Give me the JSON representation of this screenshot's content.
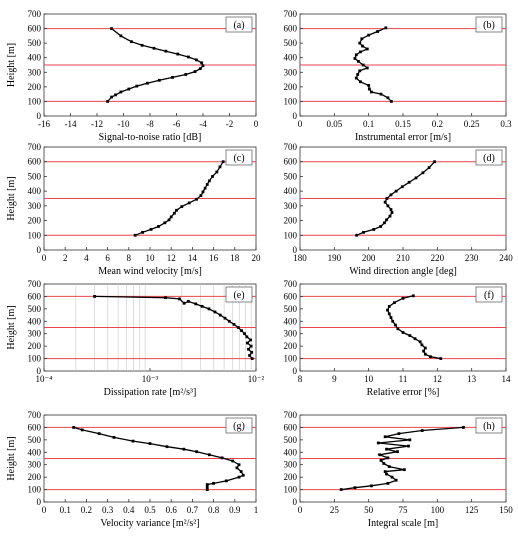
{
  "figure": {
    "colors": {
      "refline": "#e8454f",
      "grid": "#c8c8c8",
      "series": "#000000",
      "axis": "#333333"
    }
  },
  "chart_data": [
    {
      "id": "a",
      "type": "line",
      "panel_label": "(a)",
      "xlabel": "Signal-to-noise ratio [dB]",
      "ylabel": "Height [m]",
      "xlim": [
        -16,
        0
      ],
      "ylim": [
        0,
        700
      ],
      "xticks": [
        -16,
        -14,
        -12,
        -10,
        -8,
        -6,
        -4,
        -2,
        0
      ],
      "xtick_labels": [
        "-16",
        "-14",
        "-12",
        "-10",
        "-8",
        "-6",
        "-4",
        "-2",
        "0"
      ],
      "yticks": [
        0,
        100,
        200,
        300,
        400,
        500,
        600,
        700
      ],
      "ytick_labels": [
        "0",
        "100",
        "200",
        "300",
        "400",
        "500",
        "600",
        "700"
      ],
      "reference_lines_y": [
        100,
        350,
        600
      ],
      "series": [
        {
          "x": [
            -11.2,
            -10.9,
            -10.6,
            -10.2,
            -9.6,
            -9.0,
            -8.2,
            -7.3,
            -6.3,
            -5.3,
            -4.6,
            -4.2,
            -4.0,
            -4.1,
            -4.5,
            -5.1,
            -5.9,
            -6.8,
            -7.7,
            -8.6,
            -9.4,
            -10.2,
            -10.9
          ],
          "y": [
            100,
            130,
            145,
            165,
            185,
            205,
            225,
            245,
            265,
            285,
            305,
            325,
            345,
            365,
            385,
            405,
            425,
            445,
            465,
            485,
            510,
            550,
            600
          ]
        }
      ]
    },
    {
      "id": "b",
      "type": "line",
      "panel_label": "(b)",
      "xlabel": "Instrumental error [m/s]",
      "ylabel": "",
      "xlim": [
        0,
        0.3
      ],
      "ylim": [
        0,
        700
      ],
      "xticks": [
        0,
        0.05,
        0.1,
        0.15,
        0.2,
        0.25,
        0.3
      ],
      "xtick_labels": [
        "0",
        "0.05",
        "0.1",
        "0.15",
        "0.2",
        "0.25",
        "0.3"
      ],
      "yticks": [
        0,
        100,
        200,
        300,
        400,
        500,
        600,
        700
      ],
      "ytick_labels": [
        "0",
        "100",
        "200",
        "300",
        "400",
        "500",
        "600",
        "700"
      ],
      "reference_lines_y": [
        100,
        350,
        600
      ],
      "series": [
        {
          "x": [
            0.133,
            0.128,
            0.118,
            0.104,
            0.101,
            0.1,
            0.088,
            0.082,
            0.084,
            0.087,
            0.098,
            0.092,
            0.085,
            0.08,
            0.082,
            0.088,
            0.098,
            0.091,
            0.087,
            0.09,
            0.1,
            0.113,
            0.125
          ],
          "y": [
            100,
            125,
            150,
            165,
            185,
            210,
            235,
            260,
            285,
            310,
            330,
            350,
            375,
            395,
            420,
            440,
            460,
            480,
            500,
            530,
            555,
            580,
            605
          ]
        }
      ]
    },
    {
      "id": "c",
      "type": "line",
      "panel_label": "(c)",
      "xlabel": "Mean wind velocity [m/s]",
      "ylabel": "Height [m]",
      "xlim": [
        0,
        20
      ],
      "ylim": [
        0,
        700
      ],
      "xticks": [
        0,
        2,
        4,
        6,
        8,
        10,
        12,
        14,
        16,
        18,
        20
      ],
      "xtick_labels": [
        "0",
        "2",
        "4",
        "6",
        "8",
        "10",
        "12",
        "14",
        "16",
        "18",
        "20"
      ],
      "yticks": [
        0,
        100,
        200,
        300,
        400,
        500,
        600,
        700
      ],
      "ytick_labels": [
        "0",
        "100",
        "200",
        "300",
        "400",
        "500",
        "600",
        "700"
      ],
      "reference_lines_y": [
        100,
        350,
        600
      ],
      "series": [
        {
          "x": [
            8.6,
            9.3,
            10.1,
            10.8,
            11.4,
            11.8,
            12.0,
            12.3,
            12.5,
            13.0,
            13.7,
            14.4,
            14.8,
            15.0,
            15.2,
            15.4,
            15.6,
            15.9,
            16.3,
            16.6,
            16.9
          ],
          "y": [
            100,
            120,
            140,
            160,
            185,
            205,
            225,
            250,
            270,
            295,
            320,
            345,
            370,
            395,
            420,
            445,
            470,
            500,
            530,
            565,
            600
          ]
        }
      ]
    },
    {
      "id": "d",
      "type": "line",
      "panel_label": "(d)",
      "xlabel": "Wind direction angle [deg]",
      "ylabel": "",
      "xlim": [
        180,
        240
      ],
      "ylim": [
        0,
        700
      ],
      "xticks": [
        180,
        190,
        200,
        210,
        220,
        230,
        240
      ],
      "xtick_labels": [
        "180",
        "190",
        "200",
        "210",
        "220",
        "230",
        "240"
      ],
      "yticks": [
        0,
        100,
        200,
        300,
        400,
        500,
        600,
        700
      ],
      "ytick_labels": [
        "0",
        "100",
        "200",
        "300",
        "400",
        "500",
        "600",
        "700"
      ],
      "reference_lines_y": [
        100,
        350,
        600
      ],
      "series": [
        {
          "x": [
            196.5,
            198.5,
            201.5,
            203.5,
            204.6,
            205.2,
            206.2,
            206.8,
            206.5,
            205.6,
            204.8,
            205.3,
            206.5,
            208.0,
            209.8,
            211.8,
            213.8,
            215.8,
            217.6,
            219.2
          ],
          "y": [
            100,
            120,
            140,
            160,
            185,
            205,
            230,
            255,
            275,
            300,
            325,
            350,
            375,
            400,
            430,
            460,
            490,
            525,
            560,
            600
          ]
        }
      ]
    },
    {
      "id": "e",
      "type": "line",
      "panel_label": "(e)",
      "xlabel": "Dissipation rate [m²/s³]",
      "ylabel": "Height [m]",
      "xscale": "log",
      "xlim": [
        0.0001,
        0.01
      ],
      "ylim": [
        0,
        700
      ],
      "xticks": [
        0.0001,
        0.001,
        0.01
      ],
      "xtick_labels": [
        "10⁻⁴",
        "10⁻³",
        "10⁻²"
      ],
      "yticks": [
        0,
        100,
        200,
        300,
        400,
        500,
        600,
        700
      ],
      "ytick_labels": [
        "0",
        "100",
        "200",
        "300",
        "400",
        "500",
        "600",
        "700"
      ],
      "reference_lines_y": [
        100,
        350,
        600
      ],
      "series": [
        {
          "x": [
            0.0092,
            0.0087,
            0.0091,
            0.0085,
            0.009,
            0.0083,
            0.0089,
            0.0082,
            0.0078,
            0.0073,
            0.0068,
            0.0062,
            0.0056,
            0.0051,
            0.0046,
            0.0041,
            0.0036,
            0.0031,
            0.0027,
            0.0023,
            0.0021,
            0.0019,
            0.0014,
            0.0003
          ],
          "y": [
            100,
            125,
            150,
            175,
            200,
            225,
            250,
            275,
            300,
            325,
            350,
            375,
            400,
            425,
            450,
            475,
            500,
            520,
            540,
            560,
            545,
            580,
            590,
            600
          ]
        }
      ]
    },
    {
      "id": "f",
      "type": "line",
      "panel_label": "(f)",
      "xlabel": "Relative error [%]",
      "ylabel": "",
      "xlim": [
        8,
        14
      ],
      "ylim": [
        0,
        700
      ],
      "xticks": [
        8,
        9,
        10,
        11,
        12,
        13,
        14
      ],
      "xtick_labels": [
        "8",
        "9",
        "10",
        "11",
        "12",
        "13",
        "14"
      ],
      "yticks": [
        0,
        100,
        200,
        300,
        400,
        500,
        600,
        700
      ],
      "ytick_labels": [
        "0",
        "100",
        "200",
        "300",
        "400",
        "500",
        "600",
        "700"
      ],
      "reference_lines_y": [
        100,
        350,
        600
      ],
      "series": [
        {
          "x": [
            12.1,
            11.8,
            11.65,
            11.6,
            11.65,
            11.55,
            11.5,
            11.35,
            11.2,
            11.0,
            10.85,
            10.78,
            10.7,
            10.65,
            10.6,
            10.55,
            10.6,
            10.75,
            11.0,
            11.3
          ],
          "y": [
            100,
            115,
            135,
            160,
            185,
            210,
            235,
            260,
            285,
            310,
            340,
            370,
            400,
            430,
            460,
            490,
            520,
            550,
            585,
            605
          ]
        }
      ]
    },
    {
      "id": "g",
      "type": "line",
      "panel_label": "(g)",
      "xlabel": "Velocity variance [m²/s²]",
      "ylabel": "Height [m]",
      "xlim": [
        0,
        1
      ],
      "ylim": [
        0,
        700
      ],
      "xticks": [
        0,
        0.1,
        0.2,
        0.3,
        0.4,
        0.5,
        0.6,
        0.7,
        0.8,
        0.9,
        1
      ],
      "xtick_labels": [
        "0",
        "0.1",
        "0.2",
        "0.3",
        "0.4",
        "0.5",
        "0.6",
        "0.7",
        "0.8",
        "0.9",
        "1"
      ],
      "yticks": [
        0,
        100,
        200,
        300,
        400,
        500,
        600,
        700
      ],
      "ytick_labels": [
        "0",
        "100",
        "200",
        "300",
        "400",
        "500",
        "600",
        "700"
      ],
      "reference_lines_y": [
        100,
        350,
        600
      ],
      "series": [
        {
          "x": [
            0.77,
            0.77,
            0.77,
            0.8,
            0.86,
            0.92,
            0.94,
            0.93,
            0.91,
            0.92,
            0.89,
            0.84,
            0.78,
            0.72,
            0.66,
            0.58,
            0.5,
            0.42,
            0.33,
            0.26,
            0.18,
            0.14
          ],
          "y": [
            100,
            120,
            140,
            150,
            170,
            200,
            215,
            245,
            275,
            300,
            330,
            355,
            380,
            405,
            425,
            445,
            470,
            490,
            520,
            550,
            580,
            600
          ]
        }
      ]
    },
    {
      "id": "h",
      "type": "line",
      "panel_label": "(h)",
      "xlabel": "Integral scale [m]",
      "ylabel": "",
      "xlim": [
        0,
        150
      ],
      "ylim": [
        0,
        700
      ],
      "xticks": [
        0,
        25,
        50,
        75,
        100,
        125,
        150
      ],
      "xtick_labels": [
        "0",
        "25",
        "50",
        "75",
        "100",
        "125",
        "150"
      ],
      "yticks": [
        0,
        100,
        200,
        300,
        400,
        500,
        600,
        700
      ],
      "ytick_labels": [
        "0",
        "100",
        "200",
        "300",
        "400",
        "500",
        "600",
        "700"
      ],
      "reference_lines_y": [
        100,
        350,
        600
      ],
      "series": [
        {
          "x": [
            30,
            40,
            52,
            64,
            70,
            67,
            63,
            62,
            76,
            65,
            61,
            59,
            64,
            58,
            71,
            63,
            79,
            57,
            80,
            62,
            72,
            89,
            119
          ],
          "y": [
            100,
            115,
            130,
            150,
            175,
            200,
            225,
            245,
            260,
            285,
            310,
            335,
            355,
            380,
            405,
            425,
            450,
            475,
            500,
            525,
            550,
            575,
            600
          ]
        }
      ]
    }
  ]
}
